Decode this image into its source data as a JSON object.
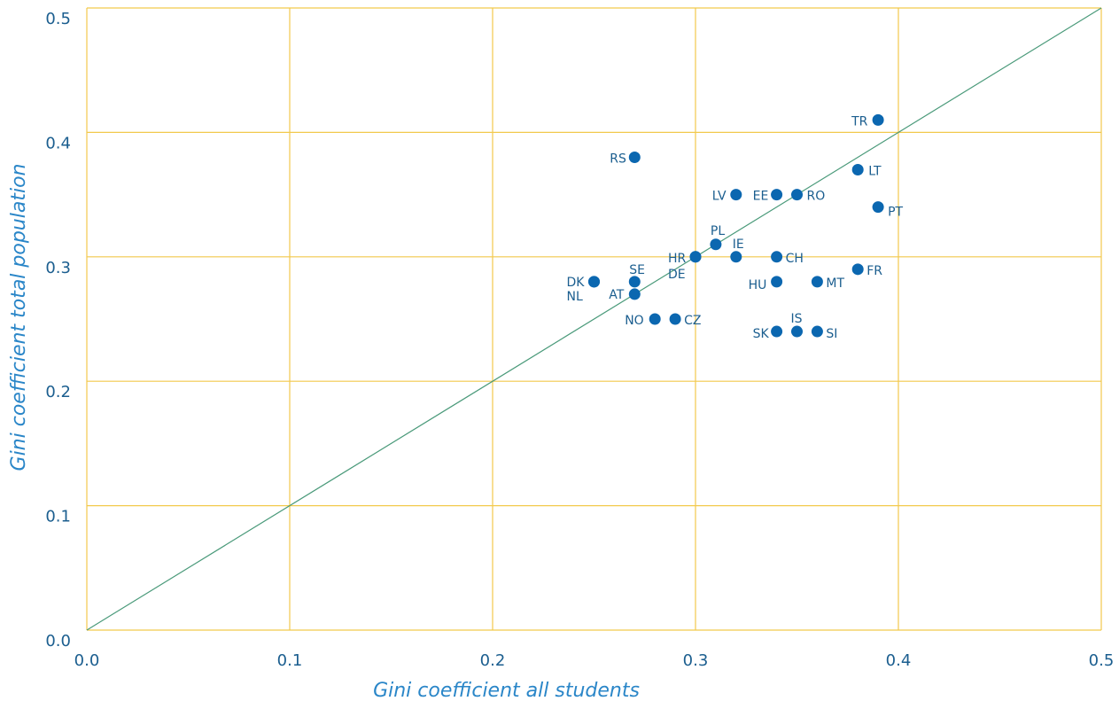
{
  "chart_data": {
    "type": "scatter",
    "title": "",
    "xlabel": "Gini coefficient all students",
    "ylabel": "Gini coefficient total population",
    "xlim": [
      0.0,
      0.5
    ],
    "ylim": [
      0.0,
      0.5
    ],
    "x_ticks": [
      "0.0",
      "0.1",
      "0.2",
      "0.3",
      "0.4",
      "0.5"
    ],
    "y_ticks": [
      "0.0",
      "0.1",
      "0.2",
      "0.3",
      "0.4",
      "0.5"
    ],
    "grid": true,
    "reference_line": "y = x",
    "colors": {
      "points": "#0b67b0",
      "grid": "#f2c94c",
      "diagonal": "#4a9a7a",
      "tick_text": "#1b5e8f",
      "axis_title": "#2a86c8"
    },
    "points": [
      {
        "label": "TR",
        "x": 0.39,
        "y": 0.41
      },
      {
        "label": "RS",
        "x": 0.27,
        "y": 0.38
      },
      {
        "label": "LT",
        "x": 0.38,
        "y": 0.37
      },
      {
        "label": "LV",
        "x": 0.32,
        "y": 0.35
      },
      {
        "label": "EE",
        "x": 0.34,
        "y": 0.35
      },
      {
        "label": "RO",
        "x": 0.35,
        "y": 0.35
      },
      {
        "label": "PT",
        "x": 0.39,
        "y": 0.34
      },
      {
        "label": "PL",
        "x": 0.31,
        "y": 0.31
      },
      {
        "label": "HR",
        "x": 0.3,
        "y": 0.3
      },
      {
        "label": "IE",
        "x": 0.32,
        "y": 0.3
      },
      {
        "label": "CH",
        "x": 0.34,
        "y": 0.3
      },
      {
        "label": "FR",
        "x": 0.38,
        "y": 0.29
      },
      {
        "label": "DE",
        "x": 0.3,
        "y": 0.3
      },
      {
        "label": "DK",
        "x": 0.25,
        "y": 0.28
      },
      {
        "label": "NL",
        "x": 0.25,
        "y": 0.28
      },
      {
        "label": "SE",
        "x": 0.27,
        "y": 0.28
      },
      {
        "label": "AT",
        "x": 0.27,
        "y": 0.27
      },
      {
        "label": "HU",
        "x": 0.34,
        "y": 0.28
      },
      {
        "label": "MT",
        "x": 0.36,
        "y": 0.28
      },
      {
        "label": "NO",
        "x": 0.28,
        "y": 0.25
      },
      {
        "label": "CZ",
        "x": 0.29,
        "y": 0.25
      },
      {
        "label": "IS",
        "x": 0.35,
        "y": 0.24
      },
      {
        "label": "SK",
        "x": 0.34,
        "y": 0.24
      },
      {
        "label": "SI",
        "x": 0.36,
        "y": 0.24
      }
    ]
  }
}
